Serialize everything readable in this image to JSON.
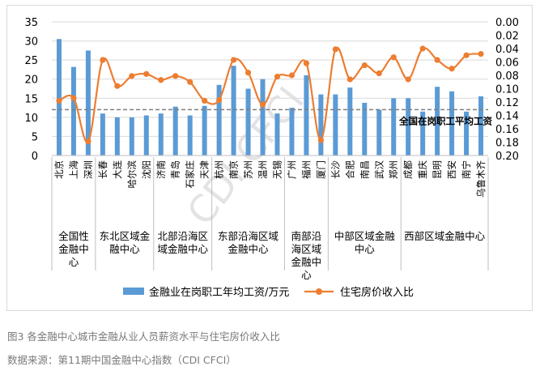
{
  "figure_caption": "图3 各金融中心城市金融从业人员薪资水平与住宅房价收入比",
  "source_caption": "数据来源：第11期中国金融中心指数（CDI CFCI）",
  "watermark": "CDI CFCI",
  "colors": {
    "bar": "#5b9bd5",
    "line": "#ed7d31",
    "grid": "#d9d9d9",
    "text": "#000000",
    "caption": "#7a7a7a"
  },
  "chart_data": {
    "type": "bar+line",
    "title": "",
    "categories": [
      "北京",
      "上海",
      "深圳",
      "长春",
      "大连",
      "哈尔滨",
      "沈阳",
      "济南",
      "青岛",
      "石家庄",
      "天津",
      "杭州",
      "南京",
      "苏州",
      "温州",
      "无锡",
      "广州",
      "福州",
      "厦门",
      "长沙",
      "合肥",
      "南昌",
      "武汉",
      "郑州",
      "成都",
      "重庆",
      "昆明",
      "西安",
      "南宁",
      "乌鲁木齐"
    ],
    "region_groups": [
      {
        "label": "全国性金融中心",
        "count": 3
      },
      {
        "label": "东北区域金融中心",
        "count": 4
      },
      {
        "label": "北部沿海区域金融中心",
        "count": 4
      },
      {
        "label": "东部沿海区域金融中心",
        "count": 5
      },
      {
        "label": "南部沿海区域金融中心",
        "count": 3
      },
      {
        "label": "中部区域金融中心",
        "count": 5
      },
      {
        "label": "西部区域金融中心",
        "count": 6
      }
    ],
    "series": [
      {
        "name": "金融业在岗职工年均工资/万元",
        "kind": "bar",
        "axis": "left",
        "values": [
          30.5,
          23.2,
          27.5,
          11.0,
          10.0,
          10.0,
          10.5,
          11.0,
          12.8,
          10.5,
          13.0,
          18.5,
          23.5,
          17.5,
          20.0,
          11.0,
          12.5,
          21.0,
          16.0,
          16.0,
          17.8,
          13.8,
          12.0,
          15.0,
          15.0,
          11.5,
          18.0,
          16.8,
          11.5,
          15.5
        ]
      },
      {
        "name": "住宅房价收入比",
        "kind": "line",
        "axis": "right",
        "values": [
          0.118,
          0.114,
          0.179,
          0.057,
          0.096,
          0.081,
          0.078,
          0.087,
          0.081,
          0.09,
          0.118,
          0.117,
          0.057,
          0.076,
          0.124,
          0.082,
          0.08,
          0.062,
          0.177,
          0.041,
          0.086,
          0.065,
          0.077,
          0.053,
          0.086,
          0.04,
          0.057,
          0.07,
          0.05,
          0.048
        ]
      }
    ],
    "left_axis": {
      "min": 0,
      "max": 35,
      "ticks": [
        "0",
        "5",
        "10",
        "15",
        "20",
        "25",
        "30",
        "35"
      ]
    },
    "right_axis": {
      "min": 0.0,
      "max": 0.2,
      "reversed": true,
      "ticks": [
        "0.00",
        "0.02",
        "0.04",
        "0.06",
        "0.08",
        "0.10",
        "0.12",
        "0.14",
        "0.16",
        "0.18",
        "0.20"
      ]
    },
    "reference_line": {
      "label": "全国在岗职工平均工资",
      "value": 12.0,
      "axis": "left"
    },
    "legend": {
      "position": "bottom"
    },
    "grid": true
  }
}
